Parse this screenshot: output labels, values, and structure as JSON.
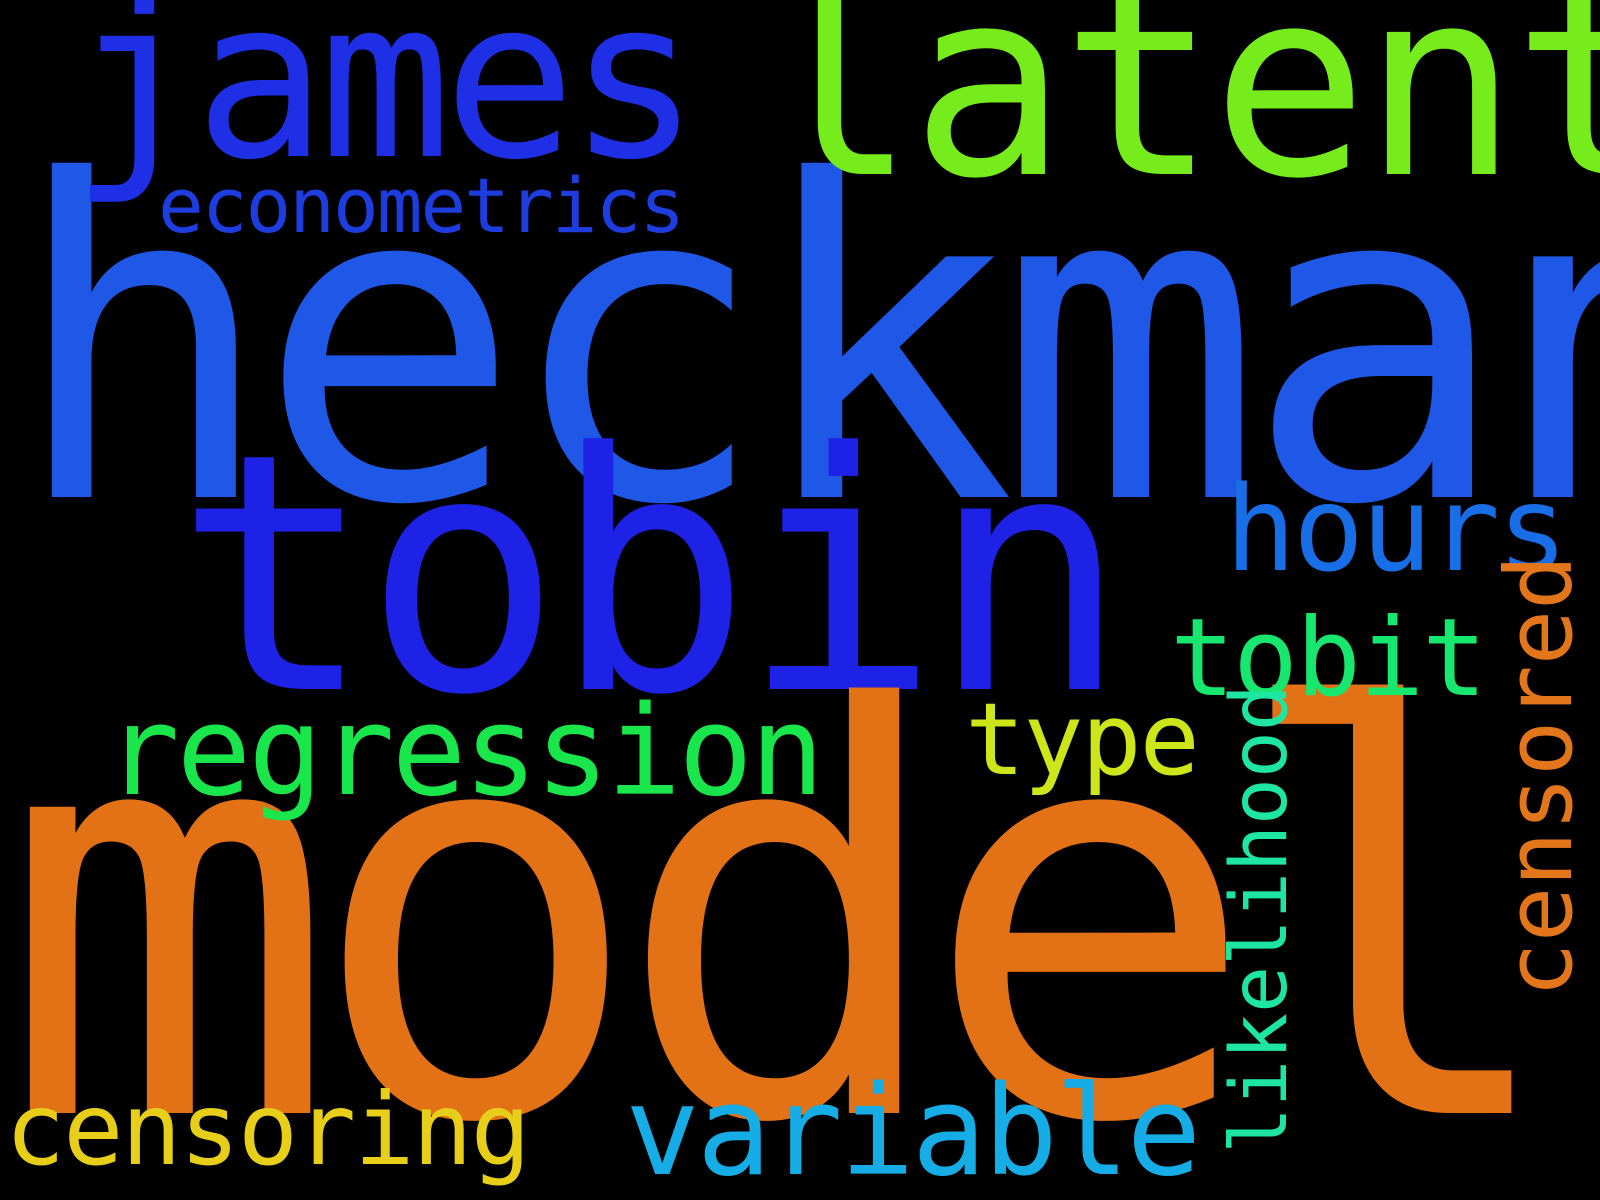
{
  "wordcloud": {
    "background": "#000000",
    "words": {
      "heckman": {
        "text": "heckman",
        "color": "#1f57e6"
      },
      "model": {
        "text": "model",
        "color": "#e37116"
      },
      "tobin": {
        "text": "tobin",
        "color": "#1d22e6"
      },
      "latent": {
        "text": "latent",
        "color": "#77ec1c"
      },
      "james": {
        "text": "james",
        "color": "#1e2fe5"
      },
      "econometrics": {
        "text": "econometrics",
        "color": "#1d3ddf"
      },
      "hours": {
        "text": "hours",
        "color": "#176ee6"
      },
      "tobit": {
        "text": "tobit",
        "color": "#17e66f"
      },
      "regression": {
        "text": "regression",
        "color": "#19e64a"
      },
      "type": {
        "text": "type",
        "color": "#cde61a"
      },
      "censoring": {
        "text": "censoring",
        "color": "#e6ce19"
      },
      "variable": {
        "text": "variable",
        "color": "#16ace6"
      },
      "censored": {
        "text": "censored",
        "color": "#e3761a"
      },
      "likelihood": {
        "text": "likelihood",
        "color": "#1ee6a2"
      }
    }
  }
}
